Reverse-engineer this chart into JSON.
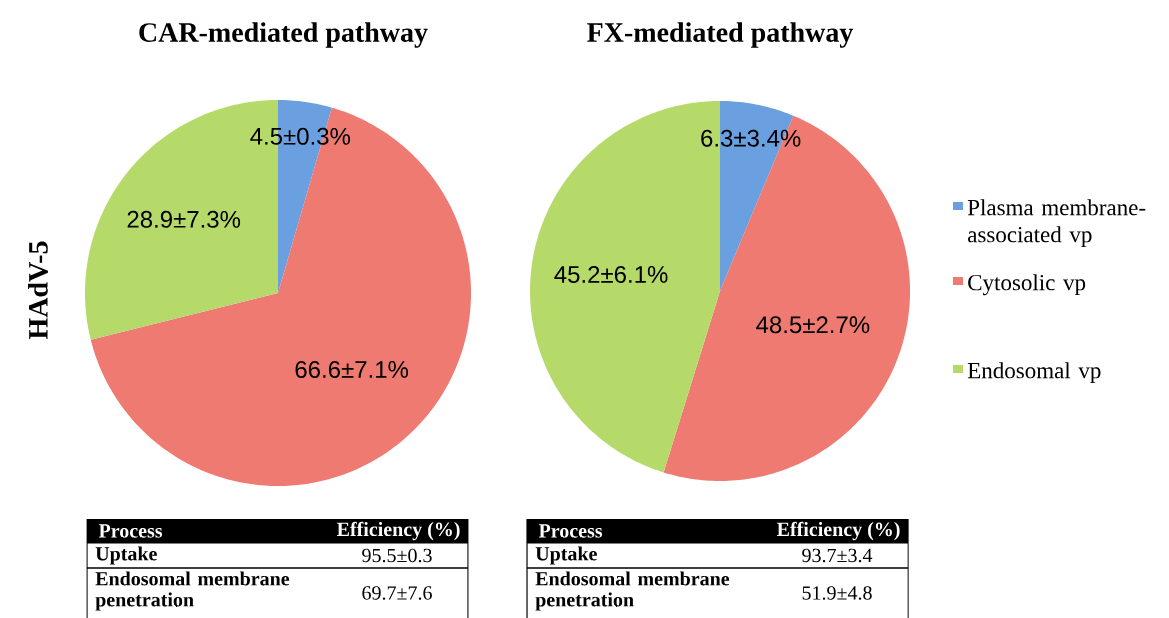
{
  "chart_data": [
    {
      "type": "pie",
      "title": "CAR-mediated pathway",
      "ylabel": "HAdV-5",
      "categories": [
        null,
        null,
        null
      ],
      "values": [
        4.5,
        66.6,
        28.9
      ],
      "colors": [
        "#6a9fe0",
        "#ee7a72",
        "#b6da6a"
      ],
      "value_labels": [
        "4.5±0.3%",
        "66.6±7.1%",
        "28.9±7.3%"
      ],
      "annotations": [
        "Process",
        "Efficiency (%)",
        "Uptake",
        "95.5±0.3",
        "Endosomal membrane penetration",
        "69.7±7.6"
      ],
      "legend": false
    },
    {
      "type": "pie",
      "title": "FX-mediated pathway",
      "categories": [
        "Plasma membrane-associated vp",
        "Cytosolic vp",
        "Endosomal vp"
      ],
      "values": [
        6.3,
        48.5,
        45.2
      ],
      "colors": [
        "#6a9fe0",
        "#ee7a72",
        "#b6da6a"
      ],
      "value_labels": [
        "6.3±3.4%",
        "48.5±2.7%",
        "45.2±6.1%"
      ],
      "annotations": [
        "Process",
        "Efficiency (%)",
        "Uptake",
        "93.7±3.4",
        "Endosomal membrane penetration",
        "51.9±4.8"
      ],
      "legend": "right"
    }
  ]
}
